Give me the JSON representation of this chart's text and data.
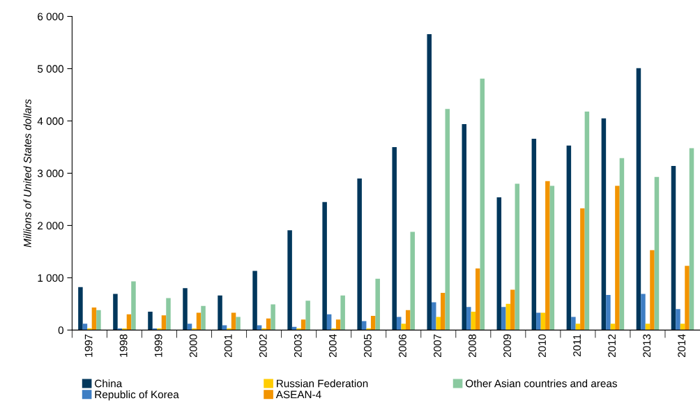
{
  "chart_data": {
    "type": "bar",
    "ylabel": "Millions of United States dollars",
    "categories": [
      "1997",
      "1998",
      "1999",
      "2000",
      "2001",
      "2002",
      "2003",
      "2004",
      "2005",
      "2006",
      "2007",
      "2008",
      "2009",
      "2010",
      "2011",
      "2012",
      "2013",
      "2014"
    ],
    "series": [
      {
        "name": "China",
        "color": "#00375c",
        "values": [
          820,
          690,
          350,
          800,
          660,
          1130,
          1910,
          2450,
          2900,
          3500,
          5660,
          3940,
          2540,
          3660,
          3530,
          4050,
          5010,
          3140
        ]
      },
      {
        "name": "Republic of Korea",
        "color": "#3e7ec4",
        "values": [
          120,
          30,
          30,
          120,
          90,
          90,
          60,
          300,
          170,
          250,
          530,
          440,
          440,
          330,
          250,
          670,
          690,
          400
        ]
      },
      {
        "name": "Russian Federation",
        "color": "#ffcc00",
        "values": [
          30,
          30,
          30,
          30,
          30,
          30,
          30,
          30,
          30,
          120,
          250,
          350,
          500,
          330,
          120,
          120,
          120,
          120
        ]
      },
      {
        "name": "ASEAN-4",
        "color": "#f29400",
        "values": [
          430,
          300,
          280,
          330,
          330,
          220,
          200,
          200,
          270,
          380,
          710,
          1180,
          770,
          2850,
          2330,
          2760,
          1530,
          1230
        ]
      },
      {
        "name": "Other Asian countries and areas",
        "color": "#8ac9a0",
        "values": [
          380,
          930,
          610,
          460,
          250,
          490,
          560,
          660,
          980,
          1880,
          4230,
          4810,
          2800,
          2760,
          4180,
          3290,
          2930,
          3480
        ]
      }
    ],
    "ylim": [
      0,
      6000
    ],
    "yticks": [
      {
        "value": 0,
        "label": "0"
      },
      {
        "value": 1000,
        "label": "1 000"
      },
      {
        "value": 2000,
        "label": "2 000"
      },
      {
        "value": 3000,
        "label": "3 000"
      },
      {
        "value": 4000,
        "label": "4 000"
      },
      {
        "value": 5000,
        "label": "5 000"
      },
      {
        "value": 6000,
        "label": "6 000"
      }
    ],
    "grid": false,
    "legend": "bottom"
  }
}
